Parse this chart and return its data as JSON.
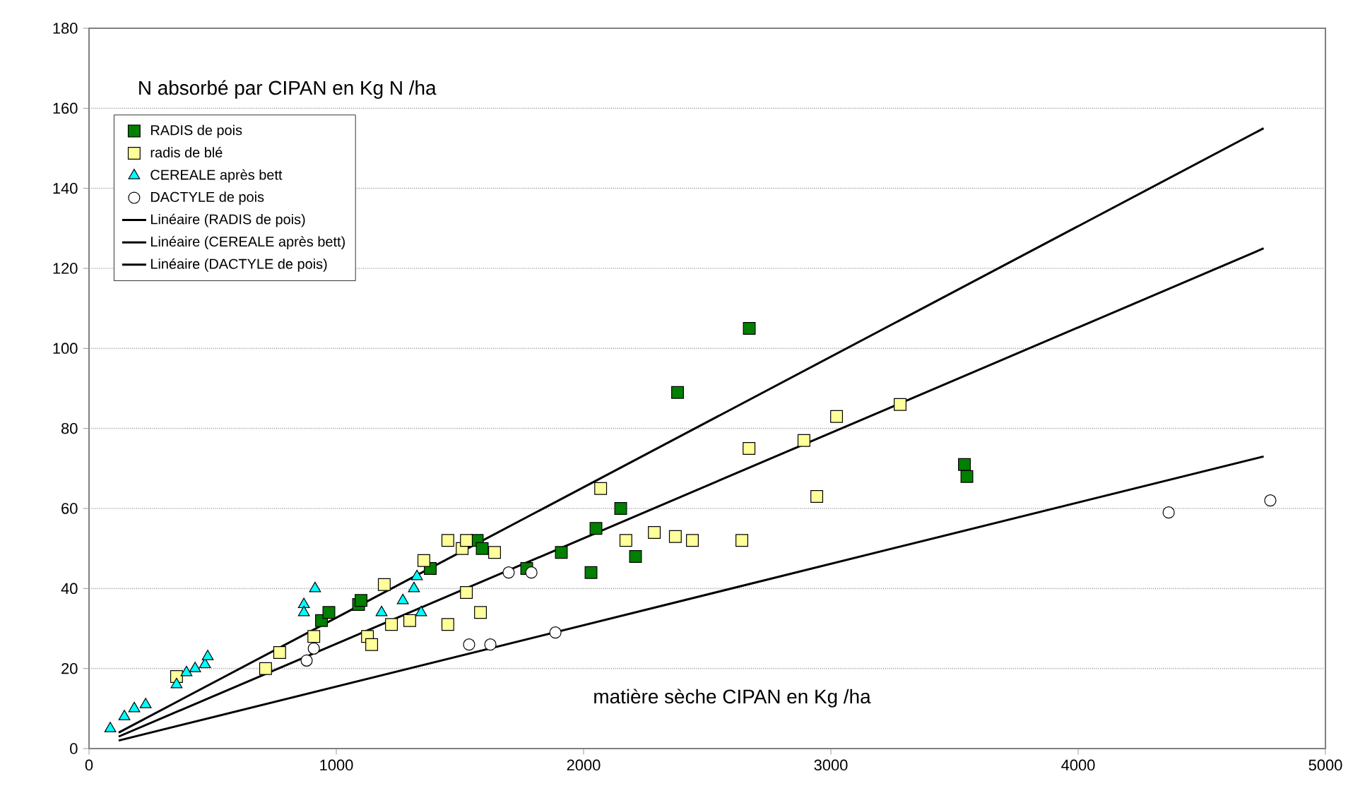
{
  "chart_data": {
    "type": "scatter",
    "xlabel": "matière sèche CIPAN en Kg /ha",
    "ylabel": "N absorbé par CIPAN en Kg N /ha",
    "xlim": [
      0,
      5000
    ],
    "ylim": [
      0,
      180
    ],
    "xticks": [
      0,
      1000,
      2000,
      3000,
      4000,
      5000
    ],
    "yticks": [
      0,
      20,
      40,
      60,
      80,
      100,
      120,
      140,
      160,
      180
    ],
    "grid": "y",
    "legend": "top left",
    "series": [
      {
        "name": "RADIS de pois",
        "color": "#008000",
        "marker": "square",
        "x": [
          940,
          970,
          1090,
          1100,
          1380,
          1570,
          1590,
          1770,
          1910,
          2030,
          2050,
          2150,
          2210,
          2380,
          2670,
          3540,
          3550
        ],
        "values": [
          32,
          34,
          36,
          37,
          45,
          52,
          50,
          45,
          49,
          44,
          55,
          60,
          48,
          89,
          105,
          71,
          68
        ]
      },
      {
        "name": "radis de blé",
        "color": "#ffff99",
        "marker": "square",
        "x": [
          354,
          714,
          771,
          909,
          1126,
          1143,
          1194,
          1223,
          1297,
          1354,
          1451,
          1451,
          1509,
          1526,
          1526,
          1583,
          1640,
          2069,
          2171,
          2286,
          2371,
          2440,
          2640,
          2669,
          2891,
          2943,
          3023,
          3280
        ],
        "values": [
          18,
          20,
          24,
          28,
          28,
          26,
          41,
          31,
          32,
          47,
          31,
          52,
          50,
          52,
          39,
          34,
          49,
          65,
          52,
          54,
          53,
          52,
          52,
          75,
          77,
          63,
          83,
          86
        ]
      },
      {
        "name": "CEREALE après bett",
        "color": "#00ffff",
        "marker": "triangle",
        "x": [
          86,
          143,
          183,
          229,
          354,
          394,
          429,
          469,
          480,
          869,
          869,
          914,
          1183,
          1269,
          1314,
          1326,
          1343
        ],
        "values": [
          5,
          8,
          10,
          11,
          16,
          19,
          20,
          21,
          23,
          36,
          34,
          40,
          34,
          37,
          40,
          43,
          34
        ]
      },
      {
        "name": "DACTYLE de pois",
        "color": "#ffffff",
        "marker": "circle",
        "x": [
          880,
          909,
          1537,
          1623,
          1697,
          1789,
          1886,
          4366,
          4777
        ],
        "values": [
          22,
          25,
          26,
          26,
          44,
          44,
          29,
          59,
          62
        ]
      },
      {
        "name": "Linéaire (RADIS de pois)",
        "type": "line",
        "color": "#000000",
        "marker": "none",
        "x": [
          120,
          4750
        ],
        "values": [
          4,
          155
        ]
      },
      {
        "name": "Linéaire (CEREALE après bett)",
        "type": "line",
        "color": "#000000",
        "marker": "none",
        "x": [
          120,
          4750
        ],
        "values": [
          3,
          125
        ]
      },
      {
        "name": "Linéaire (DACTYLE de pois)",
        "type": "line",
        "color": "#000000",
        "marker": "none",
        "x": [
          120,
          4750
        ],
        "values": [
          2,
          73
        ]
      }
    ]
  }
}
